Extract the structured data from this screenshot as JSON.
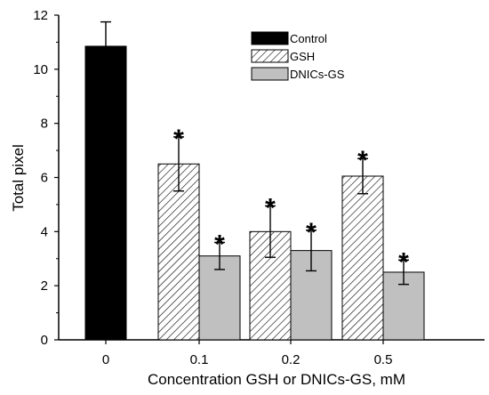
{
  "chart_data": {
    "type": "bar",
    "title": "",
    "xlabel": "Concentration GSH or DNICs-GS, mM",
    "ylabel": "Total pixel",
    "categories": [
      "0",
      "0.1",
      "0.2",
      "0.5"
    ],
    "ylim": [
      0,
      12
    ],
    "yticks": [
      0,
      2,
      4,
      6,
      8,
      10,
      12
    ],
    "grid": false,
    "legend_position": "top-right",
    "series": [
      {
        "name": "Control",
        "fill": "#000000",
        "pattern": "solid",
        "values": [
          10.85,
          null,
          null,
          null
        ],
        "errors": [
          0.9,
          null,
          null,
          null
        ],
        "markers": [
          "",
          "",
          "",
          ""
        ]
      },
      {
        "name": "GSH",
        "fill": "#ffffff",
        "pattern": "hatch",
        "values": [
          null,
          6.5,
          4.0,
          6.05
        ],
        "errors": [
          null,
          1.0,
          0.95,
          0.65
        ],
        "markers": [
          "",
          "*",
          "*",
          "*"
        ]
      },
      {
        "name": "DNICs-GS",
        "fill": "#c0c0c0",
        "pattern": "solid",
        "values": [
          null,
          3.1,
          3.3,
          2.5
        ],
        "errors": [
          null,
          0.5,
          0.75,
          0.45
        ],
        "markers": [
          "",
          "*",
          "*",
          "*"
        ]
      }
    ]
  }
}
